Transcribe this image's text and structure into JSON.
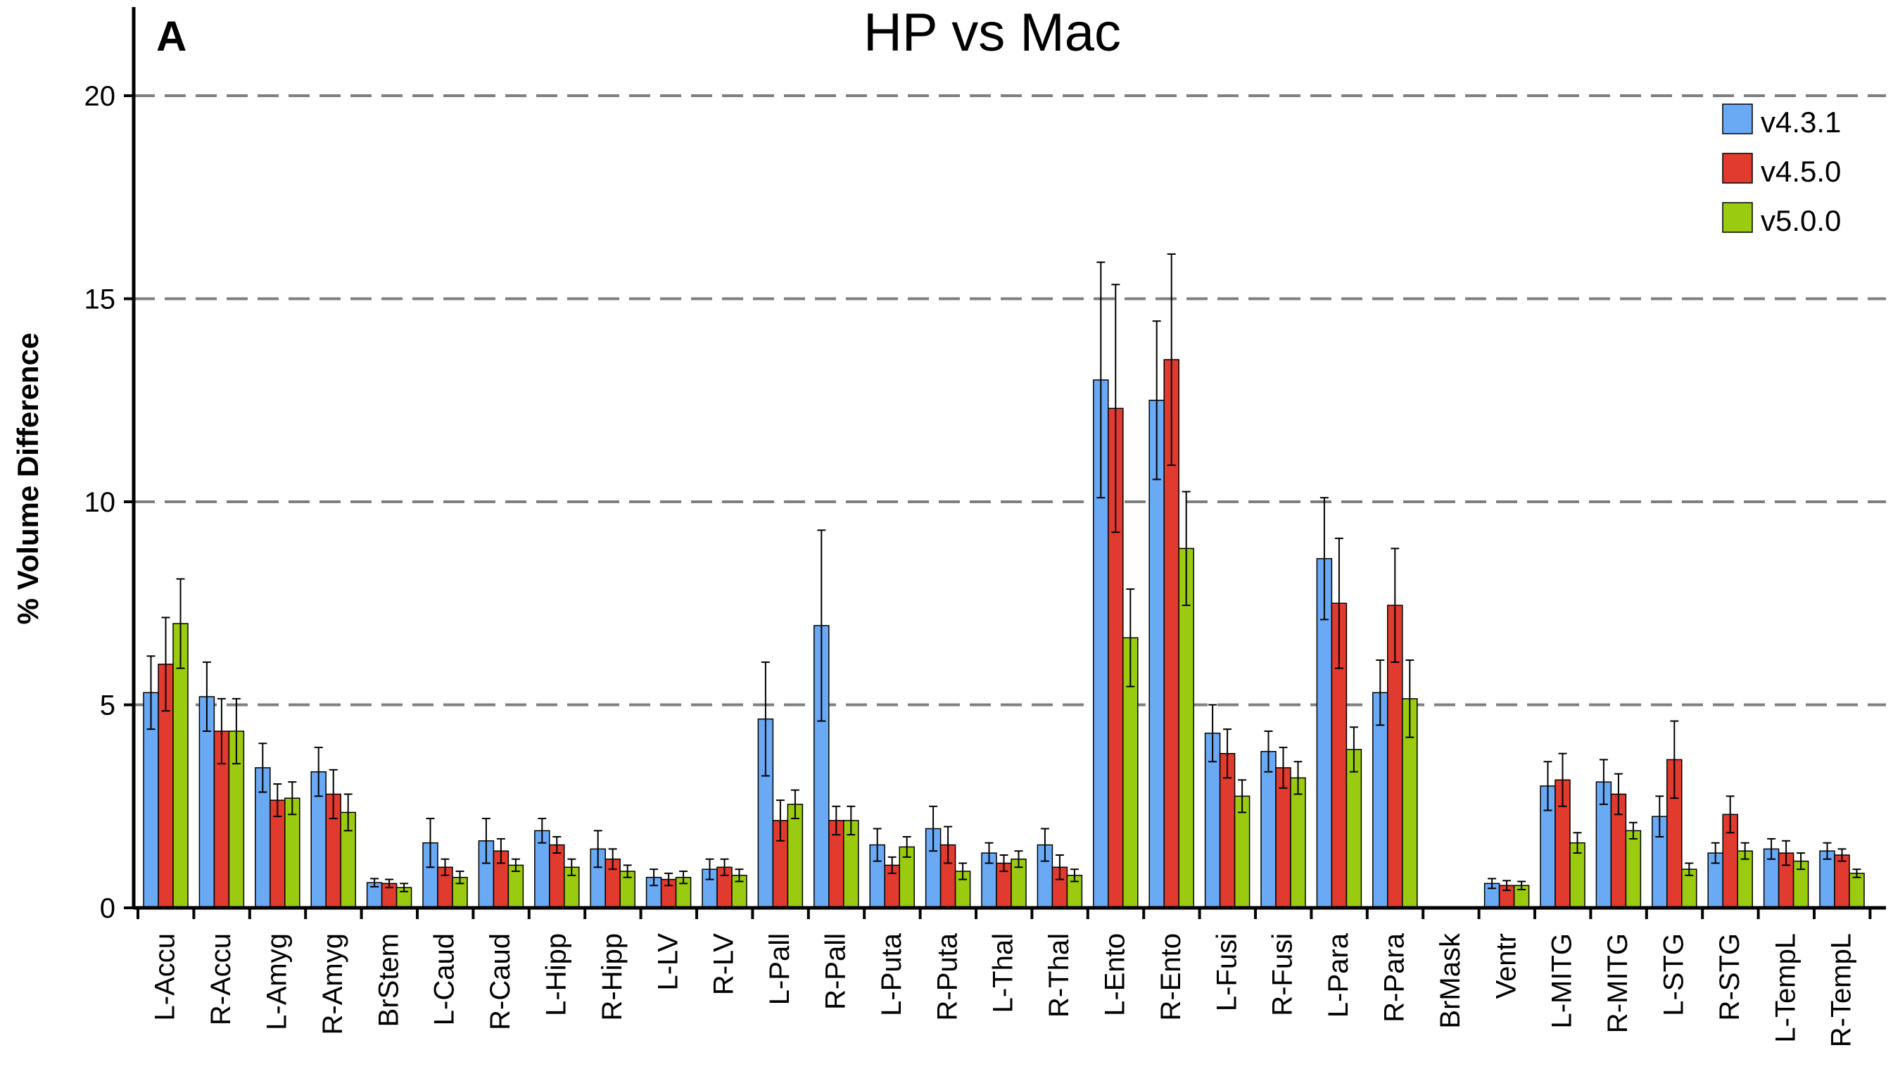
{
  "chart_data": {
    "type": "bar",
    "panel_label": "A",
    "title": "HP vs Mac",
    "xlabel": "",
    "ylabel": "% Volume Difference",
    "ylim": [
      0,
      21.5
    ],
    "yticks": [
      "0",
      "5",
      "10",
      "15",
      "20"
    ],
    "grid": "dashed horizontal at 5, 10, 15, 20",
    "legend_position": "top-right",
    "categories": [
      "L-Accu",
      "R-Accu",
      "L-Amyg",
      "R-Amyg",
      "BrStem",
      "L-Caud",
      "R-Caud",
      "L-Hipp",
      "R-Hipp",
      "L-LV",
      "R-LV",
      "L-Pall",
      "R-Pall",
      "L-Puta",
      "R-Puta",
      "L-Thal",
      "R-Thal",
      "L-Ento",
      "R-Ento",
      "L-Fusi",
      "R-Fusi",
      "L-Para",
      "R-Para",
      "BrMask",
      "Ventr",
      "L-MITG",
      "R-MITG",
      "L-STG",
      "R-STG",
      "L-TempL",
      "R-TempL"
    ],
    "series": [
      {
        "name": "v4.3.1",
        "color": "#6aa9f4",
        "values": [
          5.3,
          5.2,
          3.45,
          3.35,
          0.62,
          1.6,
          1.65,
          1.9,
          1.45,
          0.75,
          0.95,
          4.65,
          6.95,
          1.55,
          1.95,
          1.35,
          1.55,
          13.0,
          12.5,
          4.3,
          3.85,
          8.6,
          5.3,
          0,
          0.6,
          3.0,
          3.1,
          2.25,
          1.35,
          1.45,
          1.4
        ],
        "errors": [
          0.9,
          0.85,
          0.6,
          0.6,
          0.1,
          0.6,
          0.55,
          0.3,
          0.45,
          0.2,
          0.25,
          1.4,
          2.35,
          0.4,
          0.55,
          0.25,
          0.4,
          2.9,
          1.95,
          0.7,
          0.5,
          1.5,
          0.8,
          0,
          0.12,
          0.6,
          0.55,
          0.5,
          0.25,
          0.25,
          0.2
        ]
      },
      {
        "name": "v4.5.0",
        "color": "#e13a2e",
        "values": [
          6.0,
          4.35,
          2.65,
          2.8,
          0.6,
          1.0,
          1.4,
          1.55,
          1.2,
          0.7,
          1.0,
          2.15,
          2.15,
          1.05,
          1.55,
          1.1,
          1.0,
          12.3,
          13.5,
          3.8,
          3.45,
          7.5,
          7.45,
          0,
          0.55,
          3.15,
          2.8,
          3.65,
          2.3,
          1.35,
          1.3
        ],
        "errors": [
          1.15,
          0.8,
          0.4,
          0.6,
          0.1,
          0.2,
          0.3,
          0.2,
          0.25,
          0.15,
          0.2,
          0.5,
          0.35,
          0.2,
          0.45,
          0.2,
          0.3,
          3.05,
          2.6,
          0.6,
          0.5,
          1.6,
          1.4,
          0,
          0.12,
          0.65,
          0.5,
          0.95,
          0.45,
          0.3,
          0.15
        ]
      },
      {
        "name": "v5.0.0",
        "color": "#9bcb10",
        "values": [
          7.0,
          4.35,
          2.7,
          2.35,
          0.5,
          0.75,
          1.05,
          1.0,
          0.9,
          0.75,
          0.8,
          2.55,
          2.15,
          1.5,
          0.9,
          1.2,
          0.8,
          6.65,
          8.85,
          2.75,
          3.2,
          3.9,
          5.15,
          0,
          0.55,
          1.6,
          1.9,
          0.95,
          1.4,
          1.15,
          0.85
        ],
        "errors": [
          1.1,
          0.8,
          0.4,
          0.45,
          0.1,
          0.15,
          0.15,
          0.2,
          0.15,
          0.15,
          0.15,
          0.35,
          0.35,
          0.25,
          0.2,
          0.2,
          0.15,
          1.2,
          1.4,
          0.4,
          0.4,
          0.55,
          0.95,
          0,
          0.1,
          0.25,
          0.2,
          0.15,
          0.2,
          0.2,
          0.1
        ]
      }
    ]
  }
}
